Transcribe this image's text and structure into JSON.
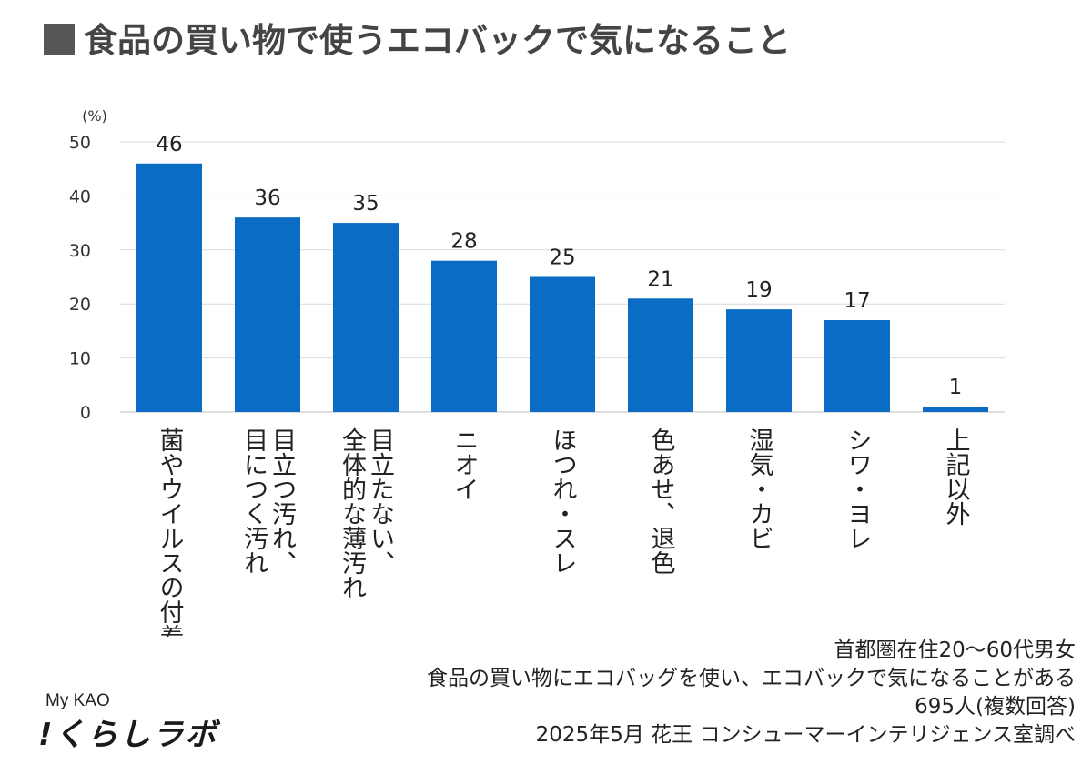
{
  "title": "食品の買い物で使うエコバックで気になること",
  "colors": {
    "bar": "#0A6CC4",
    "grid": "#d9d9d9",
    "title_square": "#555555"
  },
  "chart_data": {
    "type": "bar",
    "unit_label": "(%)",
    "categories": [
      "菌やウイルスの付着",
      "目立つ汚れ、目につく汚れ",
      "全体的な薄汚れ目立たない、",
      "ニオイ",
      "ほつれ・スレ",
      "色あせ、退色",
      "湿気・カビ",
      "シワ・ヨレ",
      "上記以外"
    ],
    "category_lines": [
      [
        "菌やウイルスの付着"
      ],
      [
        "目立つ汚れ、",
        "目につく汚れ"
      ],
      [
        "目立たない、",
        "全体的な薄汚れ"
      ],
      [
        "ニオイ"
      ],
      [
        "ほつれ・スレ"
      ],
      [
        "色あせ、退色"
      ],
      [
        "湿気・カビ"
      ],
      [
        "シワ・ヨレ"
      ],
      [
        "上記以外"
      ]
    ],
    "values": [
      46,
      36,
      35,
      28,
      25,
      21,
      19,
      17,
      1
    ],
    "ylim": [
      0,
      50
    ],
    "yticks": [
      0,
      10,
      20,
      30,
      40,
      50
    ],
    "grid": true,
    "data_labels": true
  },
  "notes": [
    "首都圏在住20～60代男女",
    "食品の買い物にエコバッグを使い、エコバックで気になることがある",
    "695人(複数回答)",
    "2025年5月 花王 コンシューマーインテリジェンス室調べ"
  ],
  "logo": {
    "brand": "My KAO",
    "name": "!くらしラボ"
  }
}
